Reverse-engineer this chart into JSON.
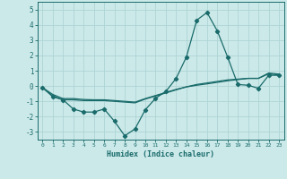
{
  "xlabel": "Humidex (Indice chaleur)",
  "xlim": [
    -0.5,
    23.5
  ],
  "ylim": [
    -3.5,
    5.5
  ],
  "yticks": [
    -3,
    -2,
    -1,
    0,
    1,
    2,
    3,
    4,
    5
  ],
  "xticks": [
    0,
    1,
    2,
    3,
    4,
    5,
    6,
    7,
    8,
    9,
    10,
    11,
    12,
    13,
    14,
    15,
    16,
    17,
    18,
    19,
    20,
    21,
    22,
    23
  ],
  "background_color": "#cce9e9",
  "grid_color": "#aed4d4",
  "line_color": "#1a6b6b",
  "line1_x": [
    0,
    1,
    2,
    3,
    4,
    5,
    6,
    7,
    8,
    9,
    10,
    11,
    12,
    13,
    14,
    15,
    16,
    17,
    18,
    19,
    20,
    21,
    22,
    23
  ],
  "line1_y": [
    -0.1,
    -0.7,
    -0.9,
    -1.5,
    -1.7,
    -1.7,
    -1.5,
    -2.3,
    -3.25,
    -2.8,
    -1.55,
    -0.8,
    -0.35,
    0.5,
    1.9,
    4.3,
    4.8,
    3.6,
    1.9,
    0.1,
    0.05,
    -0.15,
    0.7,
    0.7
  ],
  "line2_x": [
    0,
    1,
    2,
    3,
    4,
    5,
    6,
    7,
    8,
    9,
    10,
    11,
    12,
    13,
    14,
    15,
    16,
    17,
    18,
    19,
    20,
    21,
    22,
    23
  ],
  "line2_y": [
    -0.1,
    -0.65,
    -0.9,
    -0.9,
    -0.95,
    -0.95,
    -0.95,
    -1.0,
    -1.05,
    -1.1,
    -0.85,
    -0.65,
    -0.45,
    -0.25,
    -0.05,
    0.1,
    0.2,
    0.3,
    0.4,
    0.45,
    0.5,
    0.5,
    0.8,
    0.72
  ],
  "line3_x": [
    0,
    1,
    2,
    3,
    4,
    5,
    6,
    7,
    8,
    9,
    10,
    11,
    12,
    13,
    14,
    15,
    16,
    17,
    18,
    19,
    20,
    21,
    22,
    23
  ],
  "line3_y": [
    -0.1,
    -0.55,
    -0.82,
    -0.82,
    -0.88,
    -0.9,
    -0.9,
    -0.95,
    -1.0,
    -1.05,
    -0.82,
    -0.62,
    -0.42,
    -0.22,
    -0.06,
    0.05,
    0.14,
    0.24,
    0.34,
    0.42,
    0.5,
    0.5,
    0.85,
    0.78
  ]
}
